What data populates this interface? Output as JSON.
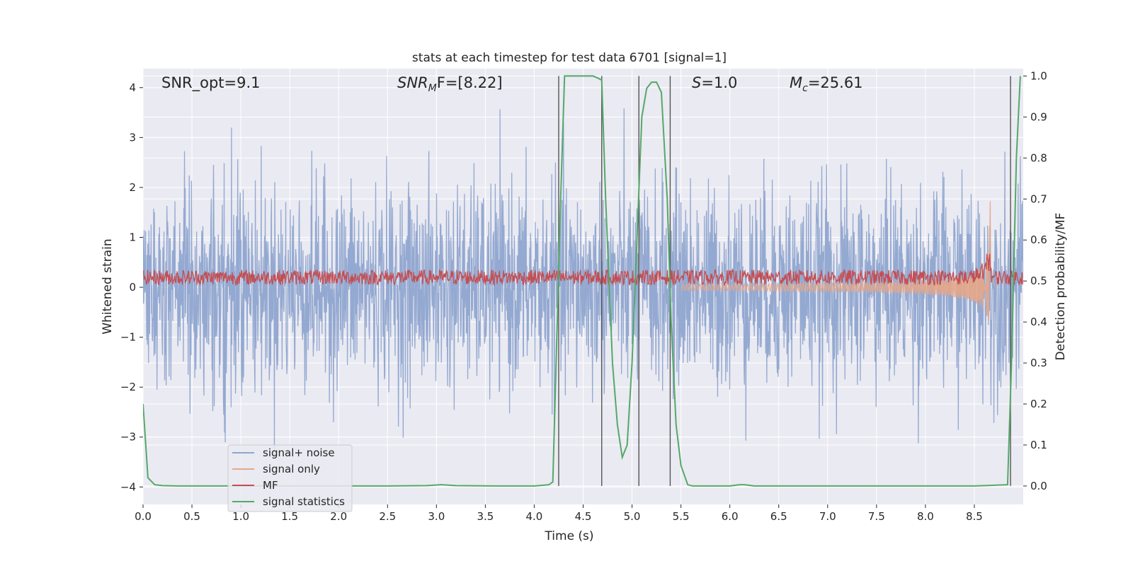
{
  "chart_data": {
    "type": "line",
    "title": "stats at each timestep for test data 6701 [signal=1]",
    "xlabel": "Time (s)",
    "ylabel": "Whitened strain",
    "y2label": "Detection probability/MF",
    "xlim": [
      0.0,
      9.0
    ],
    "ylim": [
      -4.35,
      4.38
    ],
    "y2lim": [
      -0.045,
      1.018
    ],
    "x_ticks": [
      "0.0",
      "0.5",
      "1.0",
      "1.5",
      "2.0",
      "2.5",
      "3.0",
      "3.5",
      "4.0",
      "4.5",
      "5.0",
      "5.5",
      "6.0",
      "6.5",
      "7.0",
      "7.5",
      "8.0",
      "8.5"
    ],
    "y_ticks": [
      "4",
      "3",
      "2",
      "1",
      "0",
      "−1",
      "−2",
      "−3",
      "−4"
    ],
    "y2_ticks": [
      "1.0",
      "0.9",
      "0.8",
      "0.7",
      "0.6",
      "0.5",
      "0.4",
      "0.3",
      "0.2",
      "0.1",
      "0.0"
    ],
    "annotations": {
      "snr_opt": "SNR_opt=9.1",
      "snr_mf_sym": "SNR",
      "snr_mf_sub": "M",
      "snr_mf_rest": "F=[8.22]",
      "s_sym": "S",
      "s_rest": "=1.0",
      "mc_sym": "M",
      "mc_sub": "c",
      "mc_rest": "=25.61"
    },
    "legend": {
      "location": "lower-left",
      "entries": [
        "signal+ noise",
        "signal only",
        "MF",
        "signal statistics"
      ]
    },
    "colors": {
      "signal_noise": "#8fa5cf",
      "signal_only": "#e5a688",
      "mf": "#c44e52",
      "signal_statistics": "#55a868",
      "vlines": "#555555",
      "plot_bg": "#eaeaf2",
      "grid": "#ffffff"
    },
    "noise_envelope_std": 1.0,
    "mf_band": [
      0.05,
      0.35
    ],
    "signal_chirp": {
      "start": 5.5,
      "merger": 8.67,
      "peak_amplitude": 2.0
    },
    "vertical_lines_x": [
      4.25,
      4.69,
      5.07,
      5.39,
      8.87
    ],
    "series": [
      {
        "name": "signal statistics",
        "axis": "right",
        "x": [
          0.0,
          0.05,
          0.12,
          0.2,
          0.35,
          0.6,
          1.0,
          2.0,
          2.5,
          2.9,
          3.05,
          3.2,
          3.6,
          4.0,
          4.15,
          4.19,
          4.27,
          4.31,
          4.4,
          4.6,
          4.65,
          4.69,
          4.73,
          4.8,
          4.85,
          4.9,
          4.95,
          5.0,
          5.05,
          5.1,
          5.15,
          5.2,
          5.25,
          5.3,
          5.36,
          5.4,
          5.45,
          5.5,
          5.57,
          5.62,
          5.7,
          6.0,
          6.1,
          6.15,
          6.25,
          6.5,
          7.0,
          7.5,
          8.0,
          8.5,
          8.84,
          8.88,
          8.93,
          8.97
        ],
        "values": [
          0.2,
          0.02,
          0.003,
          0.001,
          0.0,
          0.0,
          0.0,
          0.0,
          0.0,
          0.001,
          0.003,
          0.001,
          0.0,
          0.0,
          0.003,
          0.01,
          0.7,
          1.0,
          1.0,
          1.0,
          0.995,
          0.99,
          0.7,
          0.3,
          0.15,
          0.07,
          0.1,
          0.3,
          0.6,
          0.9,
          0.97,
          0.985,
          0.985,
          0.96,
          0.7,
          0.4,
          0.15,
          0.05,
          0.003,
          0.0,
          0.0,
          0.0,
          0.003,
          0.003,
          0.0,
          0.0,
          0.0,
          0.0,
          0.0,
          0.0,
          0.003,
          0.3,
          0.8,
          1.0
        ]
      }
    ]
  }
}
